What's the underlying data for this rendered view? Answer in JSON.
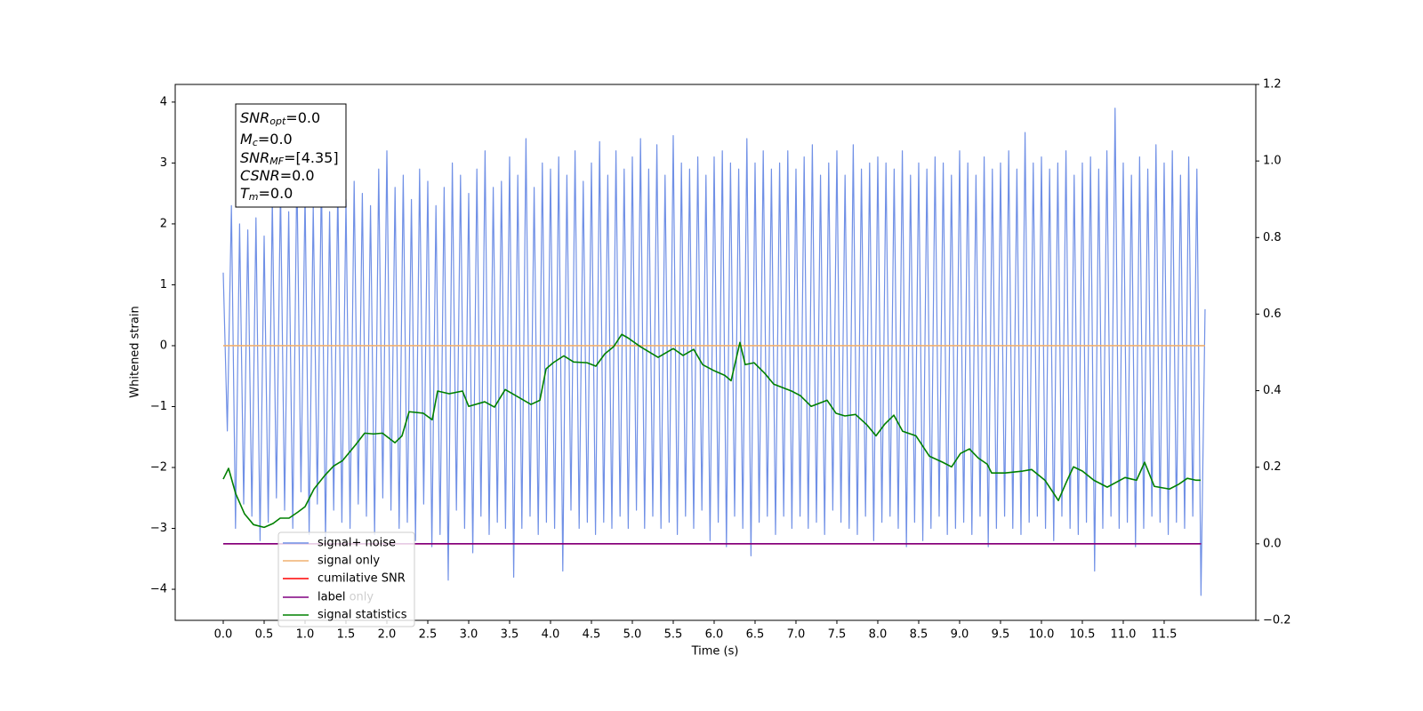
{
  "chart_data": {
    "type": "line",
    "xlabel": "Time (s)",
    "ylabel": "Whitened strain",
    "xlim": [
      -0.587,
      12.62
    ],
    "xticks": [
      {
        "value": 0,
        "label": "0.0"
      },
      0.5,
      {
        "value": 1,
        "label": "1.0"
      },
      1.5,
      {
        "value": 2,
        "label": "2.0"
      },
      2.5,
      {
        "value": 3,
        "label": "3.0"
      },
      3.5,
      {
        "value": 4,
        "label": "4.0"
      },
      4.5,
      {
        "value": 5,
        "label": "5.0"
      },
      5.5,
      {
        "value": 6,
        "label": "6.0"
      },
      6.5,
      {
        "value": 7,
        "label": "7.0"
      },
      7.5,
      {
        "value": 8,
        "label": "8.0"
      },
      8.5,
      {
        "value": 9,
        "label": "9.0"
      },
      9.5,
      {
        "value": 10,
        "label": "10.0"
      },
      10.5,
      {
        "value": 11,
        "label": "11.0"
      },
      11.5
    ],
    "ylim": [
      -4.51,
      4.29
    ],
    "yticks": [
      {
        "value": -4,
        "label": "−4"
      },
      {
        "value": -3,
        "label": "−3"
      },
      {
        "value": -2,
        "label": "−2"
      },
      {
        "value": -1,
        "label": "−1"
      },
      0,
      1,
      2,
      3,
      4
    ],
    "y2lim": [
      -0.2,
      1.2
    ],
    "y2ticks": [
      {
        "value": -0.2,
        "label": "−0.2"
      },
      {
        "value": 0,
        "label": "0.0"
      },
      0.2,
      0.4,
      0.6,
      0.8,
      {
        "value": 1,
        "label": "1.0"
      },
      1.2
    ],
    "legend": "lower left",
    "overlay_text": "label only",
    "annotations": [
      {
        "name": "SNR",
        "sub": "opt",
        "text": "=0.0"
      },
      {
        "name": "M",
        "sub": "c",
        "text": "=0.0"
      },
      {
        "name": "SNR",
        "sub": "MF",
        "text": "=[4.35]"
      },
      {
        "name": "CSNR",
        "text": "=0.0"
      },
      {
        "name": "T",
        "sub": "m",
        "text": "=0.0"
      }
    ],
    "series": [
      {
        "name": "signal+ noise",
        "color": "#7090e6",
        "x": [
          0,
          0.05,
          0.1,
          0.15,
          0.2,
          0.25,
          0.3,
          0.35,
          0.4,
          0.45,
          0.5,
          0.55,
          0.6,
          0.65,
          0.7,
          0.75,
          0.8,
          0.85,
          0.9,
          0.95,
          1,
          1.05,
          1.1,
          1.15,
          1.2,
          1.25,
          1.3,
          1.35,
          1.4,
          1.45,
          1.5,
          1.55,
          1.6,
          1.65,
          1.7,
          1.75,
          1.8,
          1.85,
          1.9,
          1.95,
          2,
          2.05,
          2.1,
          2.15,
          2.2,
          2.25,
          2.3,
          2.35,
          2.4,
          2.45,
          2.5,
          2.55,
          2.6,
          2.65,
          2.7,
          2.75,
          2.8,
          2.85,
          2.9,
          2.95,
          3,
          3.05,
          3.1,
          3.15,
          3.2,
          3.25,
          3.3,
          3.35,
          3.4,
          3.45,
          3.5,
          3.55,
          3.6,
          3.65,
          3.7,
          3.75,
          3.8,
          3.85,
          3.9,
          3.95,
          4,
          4.05,
          4.1,
          4.15,
          4.2,
          4.25,
          4.3,
          4.35,
          4.4,
          4.45,
          4.5,
          4.55,
          4.6,
          4.65,
          4.7,
          4.75,
          4.8,
          4.85,
          4.9,
          4.95,
          5,
          5.05,
          5.1,
          5.15,
          5.2,
          5.25,
          5.3,
          5.35,
          5.4,
          5.45,
          5.5,
          5.55,
          5.6,
          5.65,
          5.7,
          5.75,
          5.8,
          5.85,
          5.9,
          5.95,
          6,
          6.05,
          6.1,
          6.15,
          6.2,
          6.25,
          6.3,
          6.35,
          6.4,
          6.45,
          6.5,
          6.55,
          6.6,
          6.65,
          6.7,
          6.75,
          6.8,
          6.85,
          6.9,
          6.95,
          7,
          7.05,
          7.1,
          7.15,
          7.2,
          7.25,
          7.3,
          7.35,
          7.4,
          7.45,
          7.5,
          7.55,
          7.6,
          7.65,
          7.7,
          7.75,
          7.8,
          7.85,
          7.9,
          7.95,
          8,
          8.05,
          8.1,
          8.15,
          8.2,
          8.25,
          8.3,
          8.35,
          8.4,
          8.45,
          8.5,
          8.55,
          8.6,
          8.65,
          8.7,
          8.75,
          8.8,
          8.85,
          8.9,
          8.95,
          9,
          9.05,
          9.1,
          9.15,
          9.2,
          9.25,
          9.3,
          9.35,
          9.4,
          9.45,
          9.5,
          9.55,
          9.6,
          9.65,
          9.7,
          9.75,
          9.8,
          9.85,
          9.9,
          9.95,
          10,
          10.05,
          10.1,
          10.15,
          10.2,
          10.25,
          10.3,
          10.35,
          10.4,
          10.45,
          10.5,
          10.55,
          10.6,
          10.65,
          10.7,
          10.75,
          10.8,
          10.85,
          10.9,
          10.95,
          11,
          11.05,
          11.1,
          11.15,
          11.2,
          11.25,
          11.3,
          11.35,
          11.4,
          11.45,
          11.5,
          11.55,
          11.6,
          11.65,
          11.7,
          11.75,
          11.8,
          11.85,
          11.9,
          11.95,
          12
        ],
        "values": [
          1.2,
          -1.4,
          2.3,
          -3.0,
          2.0,
          -2.6,
          1.9,
          -2.8,
          2.1,
          -3.2,
          1.8,
          -2.9,
          2.4,
          -2.5,
          2.6,
          -2.7,
          2.2,
          -3.0,
          2.9,
          -2.4,
          2.5,
          -3.1,
          2.3,
          -2.6,
          2.8,
          -3.2,
          2.2,
          -2.7,
          2.6,
          -2.9,
          2.4,
          -3.0,
          2.7,
          -2.6,
          2.5,
          -2.8,
          2.3,
          -3.1,
          2.9,
          -2.5,
          3.2,
          -2.7,
          2.6,
          -3.0,
          2.8,
          -2.9,
          2.4,
          -3.2,
          2.9,
          -2.6,
          2.7,
          -3.3,
          2.3,
          -3.1,
          2.6,
          -3.85,
          3.0,
          -2.7,
          2.8,
          -3.0,
          2.5,
          -3.4,
          2.9,
          -2.8,
          3.2,
          -3.1,
          2.6,
          -2.9,
          2.7,
          -3.0,
          3.1,
          -3.8,
          2.8,
          -3.0,
          3.4,
          -2.8,
          2.6,
          -3.1,
          3.0,
          -2.9,
          2.9,
          -3.0,
          3.1,
          -3.7,
          2.8,
          -2.7,
          3.2,
          -3.0,
          2.7,
          -2.9,
          3.0,
          -3.1,
          3.35,
          -2.9,
          2.8,
          -3.0,
          3.2,
          -2.8,
          2.9,
          -3.0,
          3.1,
          -2.7,
          3.4,
          -3.0,
          2.9,
          -2.8,
          3.3,
          -3.0,
          2.8,
          -2.9,
          3.45,
          -3.1,
          3.0,
          -2.8,
          2.9,
          -3.0,
          3.1,
          -2.7,
          2.8,
          -3.2,
          3.1,
          -2.9,
          3.2,
          -3.3,
          3.0,
          -2.8,
          2.9,
          -3.0,
          3.4,
          -3.45,
          3.0,
          -2.9,
          3.2,
          -2.8,
          2.9,
          -3.1,
          3.0,
          -2.8,
          3.2,
          -3.0,
          2.9,
          -2.8,
          3.1,
          -3.0,
          3.3,
          -2.9,
          2.8,
          -3.1,
          3.0,
          -2.7,
          3.2,
          -2.9,
          2.8,
          -3.0,
          3.3,
          -3.1,
          2.9,
          -2.8,
          3.0,
          -3.2,
          3.1,
          -2.9,
          3.0,
          -2.8,
          2.9,
          -3.0,
          3.2,
          -3.3,
          2.8,
          -2.9,
          3.0,
          -3.2,
          2.9,
          -3.0,
          3.1,
          -2.8,
          3.0,
          -3.1,
          2.8,
          -3.0,
          3.2,
          -2.9,
          3.0,
          -3.1,
          2.8,
          -2.8,
          3.1,
          -3.3,
          2.9,
          -3.0,
          3.0,
          -2.8,
          3.2,
          -3.0,
          2.9,
          -3.1,
          3.5,
          -2.9,
          3.0,
          -2.8,
          3.1,
          -3.0,
          2.9,
          -3.2,
          3.0,
          -2.8,
          3.2,
          -3.0,
          2.8,
          -3.1,
          3.0,
          -2.9,
          3.1,
          -3.7,
          2.9,
          -3.0,
          3.2,
          -2.8,
          3.9,
          -3.0,
          3.0,
          -2.9,
          2.8,
          -3.3,
          3.1,
          -3.0,
          2.9,
          -2.8,
          3.3,
          -2.9,
          3.0,
          -3.1,
          3.2,
          -2.9,
          2.8,
          -3.0,
          3.1,
          -2.8,
          2.9,
          -4.1,
          0.6
        ]
      },
      {
        "name": "signal only",
        "color": "#f0b070",
        "x": [
          0,
          12
        ],
        "values": [
          0,
          0
        ]
      },
      {
        "name": "cumilative SNR",
        "color": "#ff0000",
        "axis": "y2",
        "x": [
          0,
          11.95
        ],
        "values": [
          0,
          0
        ]
      },
      {
        "name": "label",
        "color": "#800080",
        "axis": "y2",
        "x": [
          0,
          11.95
        ],
        "values": [
          0,
          0
        ]
      },
      {
        "name": "signal statistics",
        "color": "#008000",
        "axis": "y2",
        "x": [
          0,
          0.065,
          0.152,
          0.261,
          0.37,
          0.5,
          0.609,
          0.696,
          0.804,
          0.913,
          1.0,
          1.109,
          1.239,
          1.348,
          1.457,
          1.62,
          1.728,
          1.837,
          1.946,
          2.098,
          2.185,
          2.272,
          2.446,
          2.554,
          2.62,
          2.761,
          2.924,
          3.0,
          3.196,
          3.315,
          3.446,
          3.576,
          3.761,
          3.87,
          3.946,
          4.033,
          4.163,
          4.283,
          4.446,
          4.554,
          4.663,
          4.772,
          4.87,
          4.946,
          5.098,
          5.315,
          5.5,
          5.62,
          5.75,
          5.859,
          6.0,
          6.13,
          6.207,
          6.315,
          6.38,
          6.489,
          6.62,
          6.728,
          6.946,
          7.054,
          7.185,
          7.38,
          7.489,
          7.598,
          7.728,
          7.87,
          7.978,
          8.087,
          8.196,
          8.304,
          8.467,
          8.63,
          8.793,
          8.902,
          9.011,
          9.12,
          9.228,
          9.337,
          9.391,
          9.554,
          9.772,
          9.88,
          10.043,
          10.152,
          10.207,
          10.315,
          10.391,
          10.5,
          10.641,
          10.804,
          11.022,
          11.163,
          11.261,
          11.38,
          11.565,
          11.674,
          11.783,
          11.891,
          11.946
        ],
        "values": [
          0.169,
          0.197,
          0.131,
          0.078,
          0.05,
          0.043,
          0.053,
          0.067,
          0.067,
          0.083,
          0.097,
          0.143,
          0.178,
          0.203,
          0.217,
          0.259,
          0.289,
          0.287,
          0.289,
          0.264,
          0.282,
          0.345,
          0.341,
          0.324,
          0.399,
          0.392,
          0.399,
          0.359,
          0.371,
          0.357,
          0.403,
          0.387,
          0.364,
          0.375,
          0.457,
          0.473,
          0.491,
          0.475,
          0.473,
          0.464,
          0.496,
          0.515,
          0.547,
          0.538,
          0.515,
          0.487,
          0.51,
          0.492,
          0.508,
          0.468,
          0.452,
          0.44,
          0.426,
          0.526,
          0.468,
          0.473,
          0.445,
          0.417,
          0.399,
          0.387,
          0.359,
          0.375,
          0.341,
          0.334,
          0.338,
          0.31,
          0.282,
          0.313,
          0.336,
          0.294,
          0.282,
          0.229,
          0.213,
          0.201,
          0.236,
          0.248,
          0.224,
          0.208,
          0.185,
          0.185,
          0.19,
          0.194,
          0.166,
          0.131,
          0.113,
          0.166,
          0.201,
          0.19,
          0.166,
          0.148,
          0.173,
          0.166,
          0.213,
          0.15,
          0.143,
          0.155,
          0.171,
          0.166,
          0.166
        ]
      }
    ]
  }
}
